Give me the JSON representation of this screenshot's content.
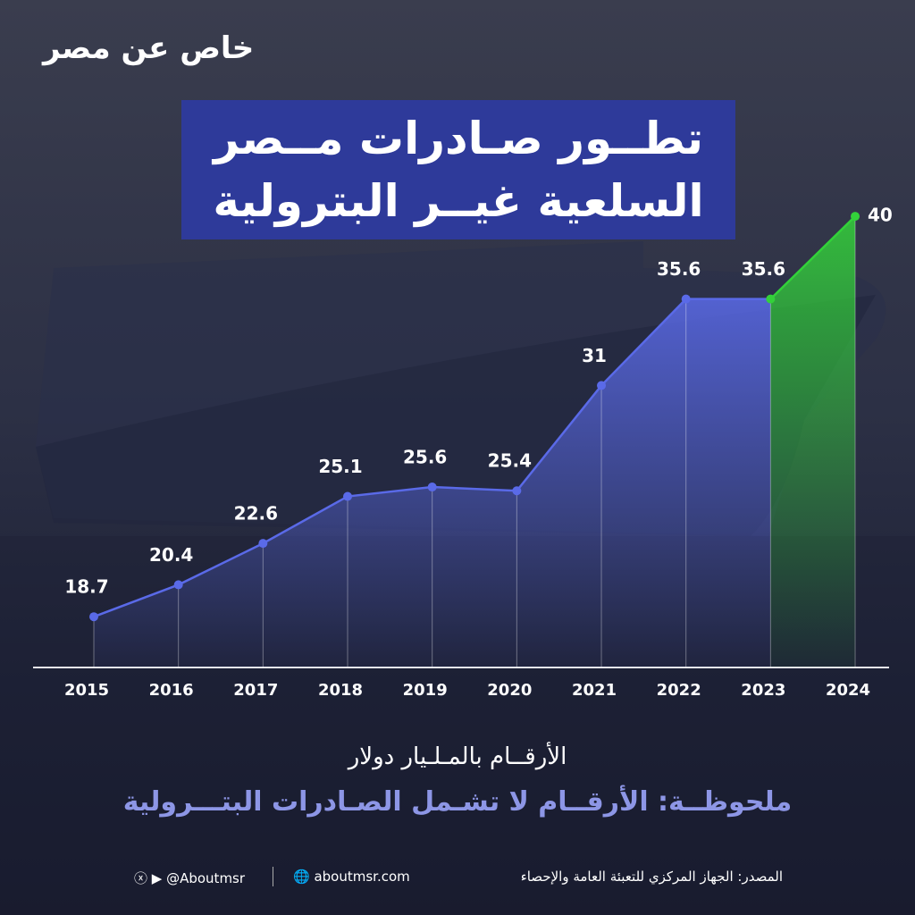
{
  "header": {
    "logo": "خاص عن مصر"
  },
  "chart_data": {
    "type": "line",
    "title": [
      "تطــور صـادرات مــصر",
      "السلعية غيــر البترولية"
    ],
    "categories": [
      "2015",
      "2016",
      "2017",
      "2018",
      "2019",
      "2020",
      "2021",
      "2022",
      "2023",
      "2024"
    ],
    "values": [
      18.7,
      20.4,
      22.6,
      25.1,
      25.6,
      25.4,
      31,
      35.6,
      35.6,
      40
    ],
    "point_colors": [
      "#5a6ae8",
      "#5a6ae8",
      "#5a6ae8",
      "#5a6ae8",
      "#5a6ae8",
      "#5a6ae8",
      "#5a6ae8",
      "#5a6ae8",
      "#33d13a",
      "#33d13a"
    ],
    "ylim": [
      16,
      42
    ],
    "subtitle": "الأرقــام بالمـلـيار دولار",
    "note": "ملحوظــة: الأرقــام لا تشـمل الصـادرات البتـــرولية"
  },
  "footer": {
    "source": "المصدر: الجهاز المركزي للتعبئة العامة والإحصاء",
    "website": "aboutmsr.com",
    "handle": "@Aboutmsr"
  }
}
